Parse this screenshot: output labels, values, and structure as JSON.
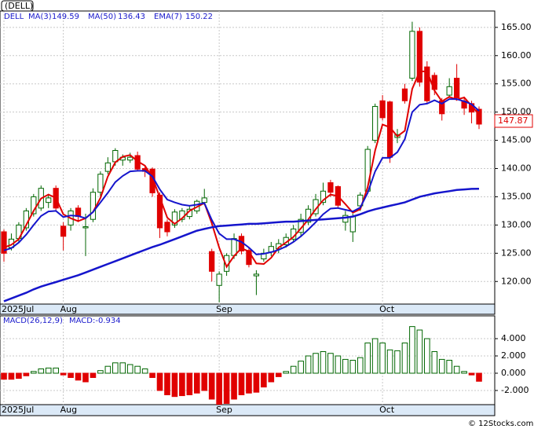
{
  "watermark": "© 12Stocks.com",
  "chart_data": [
    {
      "type": "candlestick",
      "ticker": "(DELL)",
      "symbol": "DELL",
      "last_price": "147.87",
      "categories": [
        "2025Jul",
        null,
        null,
        null,
        null,
        null,
        null,
        null,
        "Aug",
        null,
        null,
        null,
        null,
        null,
        null,
        null,
        null,
        null,
        null,
        null,
        null,
        null,
        null,
        null,
        null,
        null,
        null,
        null,
        null,
        "Sep",
        null,
        null,
        null,
        null,
        null,
        null,
        null,
        null,
        null,
        null,
        null,
        null,
        null,
        null,
        null,
        null,
        null,
        null,
        null,
        null,
        null,
        "Oct",
        null,
        null,
        null,
        null,
        null,
        null,
        null,
        null,
        null,
        null,
        null,
        null,
        null
      ],
      "open": [
        128.8,
        126.0,
        127.6,
        129.5,
        132.0,
        133.0,
        134.0,
        136.5,
        129.8,
        130.0,
        133.0,
        129.5,
        131.0,
        135.8,
        139.5,
        141.2,
        141.5,
        141.5,
        142.3,
        140.0,
        139.9,
        135.3,
        130.5,
        130.0,
        131.0,
        131.5,
        132.5,
        134.0,
        125.3,
        119.3,
        121.8,
        124.6,
        128.0,
        125.5,
        121.0,
        124.0,
        125.2,
        125.8,
        126.5,
        127.5,
        128.7,
        130.5,
        132.0,
        134.0,
        137.5,
        136.8,
        130.5,
        128.8,
        133.4,
        136.0,
        145.0,
        152.0,
        151.8,
        145.5,
        154.1,
        156.0,
        164.3,
        158.0,
        156.5,
        152.0,
        153.0,
        156.0,
        152.0,
        151.5,
        150.5
      ],
      "high": [
        129.2,
        128.5,
        130.5,
        133.0,
        135.5,
        137.0,
        135.5,
        137.0,
        130.5,
        133.0,
        133.5,
        132.0,
        136.5,
        139.5,
        142.0,
        143.6,
        142.5,
        142.8,
        143.0,
        140.5,
        140.2,
        135.8,
        131.0,
        132.8,
        133.0,
        133.5,
        134.5,
        136.4,
        125.8,
        121.8,
        125.0,
        128.5,
        128.5,
        126.0,
        122.0,
        125.8,
        127.0,
        127.5,
        128.5,
        130.0,
        132.0,
        133.5,
        135.5,
        137.5,
        138.0,
        137.0,
        132.5,
        132.0,
        135.8,
        144.0,
        151.5,
        153.0,
        152.0,
        147.0,
        155.0,
        166.0,
        165.0,
        159.0,
        157.0,
        152.5,
        156.0,
        158.5,
        152.5,
        152.0,
        151.0
      ],
      "low": [
        123.5,
        125.5,
        127.0,
        129.0,
        131.5,
        132.5,
        133.0,
        132.5,
        125.5,
        129.0,
        130.5,
        124.5,
        130.5,
        135.0,
        139.0,
        140.5,
        140.5,
        141.0,
        139.5,
        138.5,
        135.0,
        127.7,
        128.0,
        129.5,
        130.5,
        131.0,
        132.0,
        133.5,
        120.0,
        116.3,
        121.0,
        124.0,
        124.8,
        122.5,
        117.6,
        123.5,
        124.5,
        125.0,
        126.0,
        127.0,
        128.0,
        130.0,
        131.5,
        133.5,
        135.0,
        133.0,
        129.0,
        127.0,
        132.5,
        135.5,
        144.5,
        148.5,
        141.0,
        144.5,
        151.5,
        155.5,
        154.5,
        151.5,
        153.0,
        148.5,
        152.5,
        152.0,
        149.5,
        148.0,
        147.0
      ],
      "close": [
        125.0,
        127.5,
        130.0,
        132.5,
        135.0,
        136.5,
        134.8,
        133.0,
        128.0,
        132.5,
        131.5,
        129.7,
        135.8,
        139.0,
        141.0,
        143.2,
        142.0,
        142.0,
        139.9,
        139.5,
        135.7,
        129.5,
        128.8,
        132.3,
        132.5,
        132.8,
        134.2,
        134.8,
        121.8,
        121.3,
        124.6,
        127.6,
        125.4,
        123.0,
        121.3,
        125.0,
        126.2,
        126.7,
        127.8,
        129.3,
        131.0,
        132.8,
        134.5,
        136.0,
        135.8,
        133.5,
        131.7,
        131.5,
        135.3,
        143.4,
        151.0,
        149.0,
        142.0,
        146.0,
        152.0,
        164.3,
        155.3,
        152.0,
        154.0,
        149.7,
        154.5,
        152.5,
        150.7,
        150.0,
        147.87
      ],
      "up_color": "#006600",
      "down_color": "#e00000",
      "series": [
        {
          "name": "MA(3)",
          "last_label": "149.59",
          "color": "#e00000",
          "width": 2,
          "values": [
            126.0,
            126.5,
            127.5,
            130.0,
            132.5,
            134.7,
            135.4,
            134.8,
            131.9,
            131.2,
            130.7,
            131.2,
            132.3,
            134.8,
            138.6,
            141.1,
            142.1,
            142.4,
            141.3,
            140.5,
            138.4,
            134.9,
            131.3,
            130.2,
            131.2,
            132.5,
            133.2,
            133.9,
            130.3,
            126.0,
            122.6,
            124.5,
            125.9,
            125.3,
            123.2,
            123.1,
            124.2,
            126.0,
            126.9,
            127.9,
            129.4,
            131.0,
            132.8,
            134.4,
            135.4,
            135.1,
            133.7,
            132.2,
            132.8,
            136.7,
            143.2,
            147.8,
            147.3,
            145.7,
            146.7,
            154.1,
            157.2,
            157.2,
            153.8,
            151.9,
            152.7,
            152.2,
            152.6,
            151.1,
            149.59
          ]
        },
        {
          "name": "MA(50)",
          "last_label": "136.43",
          "color": "#1515cc",
          "width": 2.5,
          "values": [
            116.5,
            117.0,
            117.5,
            118.0,
            118.6,
            119.1,
            119.5,
            119.9,
            120.3,
            120.7,
            121.1,
            121.6,
            122.1,
            122.6,
            123.1,
            123.6,
            124.1,
            124.6,
            125.1,
            125.6,
            126.1,
            126.5,
            127.0,
            127.5,
            128.0,
            128.5,
            129.0,
            129.3,
            129.6,
            129.8,
            129.9,
            130.0,
            130.1,
            130.2,
            130.2,
            130.3,
            130.4,
            130.5,
            130.6,
            130.6,
            130.7,
            130.8,
            130.9,
            131.0,
            131.1,
            131.2,
            131.3,
            131.5,
            131.9,
            132.4,
            132.8,
            133.1,
            133.4,
            133.7,
            134.0,
            134.5,
            135.0,
            135.3,
            135.6,
            135.8,
            136.0,
            136.2,
            136.3,
            136.4,
            136.43
          ]
        },
        {
          "name": "EMA(7)",
          "last_label": "150.22",
          "color": "#1515cc",
          "width": 2,
          "values": [
            125.5,
            125.9,
            126.9,
            128.3,
            130.0,
            131.6,
            132.4,
            132.5,
            131.4,
            131.7,
            131.6,
            131.2,
            132.3,
            134.0,
            135.7,
            137.6,
            138.7,
            139.5,
            139.6,
            139.6,
            138.6,
            136.3,
            134.5,
            134.0,
            133.6,
            133.4,
            133.6,
            133.9,
            130.9,
            128.5,
            127.5,
            127.5,
            127.0,
            126.0,
            124.8,
            124.9,
            125.2,
            125.6,
            126.2,
            127.0,
            128.0,
            129.2,
            130.5,
            131.9,
            132.9,
            133.0,
            132.7,
            132.4,
            133.1,
            135.7,
            139.5,
            141.9,
            141.9,
            142.9,
            145.2,
            150.0,
            151.3,
            151.5,
            152.1,
            151.5,
            152.3,
            152.3,
            151.9,
            151.4,
            150.22
          ]
        }
      ],
      "ylim": [
        116.0,
        167.9
      ],
      "yticks": [
        {
          "value": 120,
          "label": "120.00"
        },
        {
          "value": 125,
          "label": "125.00"
        },
        {
          "value": 130,
          "label": "130.00"
        },
        {
          "value": 135,
          "label": "135.00"
        },
        {
          "value": 140,
          "label": "140.00"
        },
        {
          "value": 145,
          "label": "145.00"
        },
        {
          "value": 150,
          "label": "150.00"
        },
        {
          "value": 155,
          "label": "155.00"
        },
        {
          "value": 160,
          "label": "160.00"
        },
        {
          "value": 165,
          "label": "165.00"
        }
      ],
      "grid": true
    },
    {
      "type": "bar",
      "title": "MACD(26,12,9)",
      "last_label": "MACD:-0.934",
      "categories": [
        "2025Jul",
        null,
        null,
        null,
        null,
        null,
        null,
        null,
        "Aug",
        null,
        null,
        null,
        null,
        null,
        null,
        null,
        null,
        null,
        null,
        null,
        null,
        null,
        null,
        null,
        null,
        null,
        null,
        null,
        null,
        "Sep",
        null,
        null,
        null,
        null,
        null,
        null,
        null,
        null,
        null,
        null,
        null,
        null,
        null,
        null,
        null,
        null,
        null,
        null,
        null,
        null,
        null,
        "Oct",
        null,
        null,
        null,
        null,
        null,
        null,
        null,
        null,
        null,
        null,
        null,
        null,
        null
      ],
      "values": [
        -0.7,
        -0.7,
        -0.6,
        -0.3,
        0.2,
        0.5,
        0.6,
        0.6,
        -0.2,
        -0.5,
        -0.8,
        -1.0,
        -0.5,
        0.3,
        0.8,
        1.2,
        1.2,
        1.0,
        0.8,
        0.5,
        -0.5,
        -2.0,
        -2.5,
        -2.7,
        -2.6,
        -2.5,
        -2.3,
        -2.0,
        -3.0,
        -3.6,
        -3.5,
        -3.0,
        -2.5,
        -2.3,
        -2.2,
        -1.6,
        -1.0,
        -0.4,
        0.2,
        0.8,
        1.4,
        2.0,
        2.3,
        2.5,
        2.3,
        2.0,
        1.6,
        1.5,
        1.8,
        3.5,
        4.0,
        3.5,
        2.7,
        2.6,
        3.5,
        5.4,
        5.0,
        4.0,
        2.5,
        1.6,
        1.5,
        0.8,
        0.2,
        -0.2,
        -0.934
      ],
      "up_color": "#006600",
      "down_color": "#e00000",
      "ylim": [
        -3.64,
        6.64
      ],
      "yticks": [
        {
          "value": -2,
          "label": "-2.000"
        },
        {
          "value": 0,
          "label": "0.000"
        },
        {
          "value": 2,
          "label": "2.000"
        },
        {
          "value": 4,
          "label": "4.000"
        }
      ],
      "grid": true
    }
  ]
}
